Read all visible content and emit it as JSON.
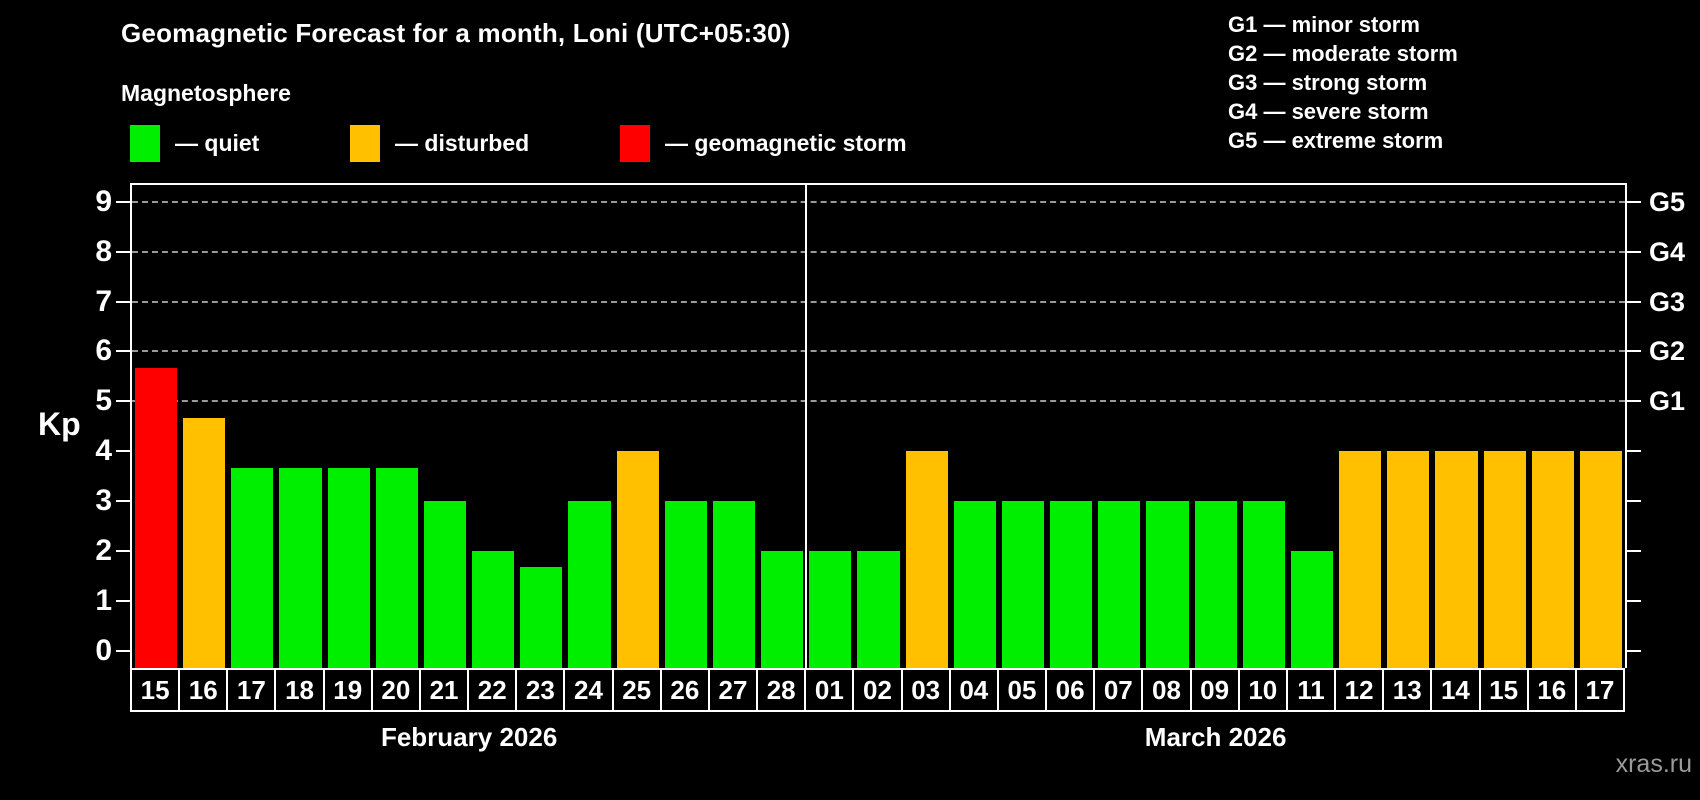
{
  "title": "Geomagnetic Forecast for a month, Loni (UTC+05:30)",
  "subtitle": "Magnetosphere",
  "legend": {
    "items": [
      {
        "status": "quiet",
        "label": "— quiet",
        "color": "#00ee00"
      },
      {
        "status": "disturbed",
        "label": "— disturbed",
        "color": "#ffc000"
      },
      {
        "status": "storm",
        "label": "— geomagnetic storm",
        "color": "#ff0000"
      }
    ]
  },
  "storm_scale_legend": [
    "G1 — minor storm",
    "G2 — moderate storm",
    "G3 — strong storm",
    "G4 — severe storm",
    "G5 — extreme storm"
  ],
  "watermark": "xras.ru",
  "chart_data": {
    "type": "bar",
    "ylabel": "Kp",
    "ylim": [
      0,
      9.4
    ],
    "yticks": [
      0,
      1,
      2,
      3,
      4,
      5,
      6,
      7,
      8,
      9
    ],
    "grid": "dashed horizontal lines at storm levels Kp 5-9",
    "g_levels": [
      {
        "kp": 5,
        "label": "G1"
      },
      {
        "kp": 6,
        "label": "G2"
      },
      {
        "kp": 7,
        "label": "G3"
      },
      {
        "kp": 8,
        "label": "G4"
      },
      {
        "kp": 9,
        "label": "G5"
      }
    ],
    "status_colors": {
      "quiet": "#00ee00",
      "disturbed": "#ffc000",
      "storm": "#ff0000"
    },
    "months": [
      {
        "label": "February 2026",
        "days": [
          {
            "day": "15",
            "kp": 5.67,
            "status": "storm"
          },
          {
            "day": "16",
            "kp": 4.67,
            "status": "disturbed"
          },
          {
            "day": "17",
            "kp": 3.67,
            "status": "quiet"
          },
          {
            "day": "18",
            "kp": 3.67,
            "status": "quiet"
          },
          {
            "day": "19",
            "kp": 3.67,
            "status": "quiet"
          },
          {
            "day": "20",
            "kp": 3.67,
            "status": "quiet"
          },
          {
            "day": "21",
            "kp": 3,
            "status": "quiet"
          },
          {
            "day": "22",
            "kp": 2,
            "status": "quiet"
          },
          {
            "day": "23",
            "kp": 1.67,
            "status": "quiet"
          },
          {
            "day": "24",
            "kp": 3,
            "status": "quiet"
          },
          {
            "day": "25",
            "kp": 4,
            "status": "disturbed"
          },
          {
            "day": "26",
            "kp": 3,
            "status": "quiet"
          },
          {
            "day": "27",
            "kp": 3,
            "status": "quiet"
          },
          {
            "day": "28",
            "kp": 2,
            "status": "quiet"
          }
        ]
      },
      {
        "label": "March 2026",
        "days": [
          {
            "day": "01",
            "kp": 2,
            "status": "quiet"
          },
          {
            "day": "02",
            "kp": 2,
            "status": "quiet"
          },
          {
            "day": "03",
            "kp": 4,
            "status": "disturbed"
          },
          {
            "day": "04",
            "kp": 3,
            "status": "quiet"
          },
          {
            "day": "05",
            "kp": 3,
            "status": "quiet"
          },
          {
            "day": "06",
            "kp": 3,
            "status": "quiet"
          },
          {
            "day": "07",
            "kp": 3,
            "status": "quiet"
          },
          {
            "day": "08",
            "kp": 3,
            "status": "quiet"
          },
          {
            "day": "09",
            "kp": 3,
            "status": "quiet"
          },
          {
            "day": "10",
            "kp": 3,
            "status": "quiet"
          },
          {
            "day": "11",
            "kp": 2,
            "status": "quiet"
          },
          {
            "day": "12",
            "kp": 4,
            "status": "disturbed"
          },
          {
            "day": "13",
            "kp": 4,
            "status": "disturbed"
          },
          {
            "day": "14",
            "kp": 4,
            "status": "disturbed"
          },
          {
            "day": "15",
            "kp": 4,
            "status": "disturbed"
          },
          {
            "day": "16",
            "kp": 4,
            "status": "disturbed"
          },
          {
            "day": "17",
            "kp": 4,
            "status": "disturbed"
          }
        ]
      }
    ]
  }
}
